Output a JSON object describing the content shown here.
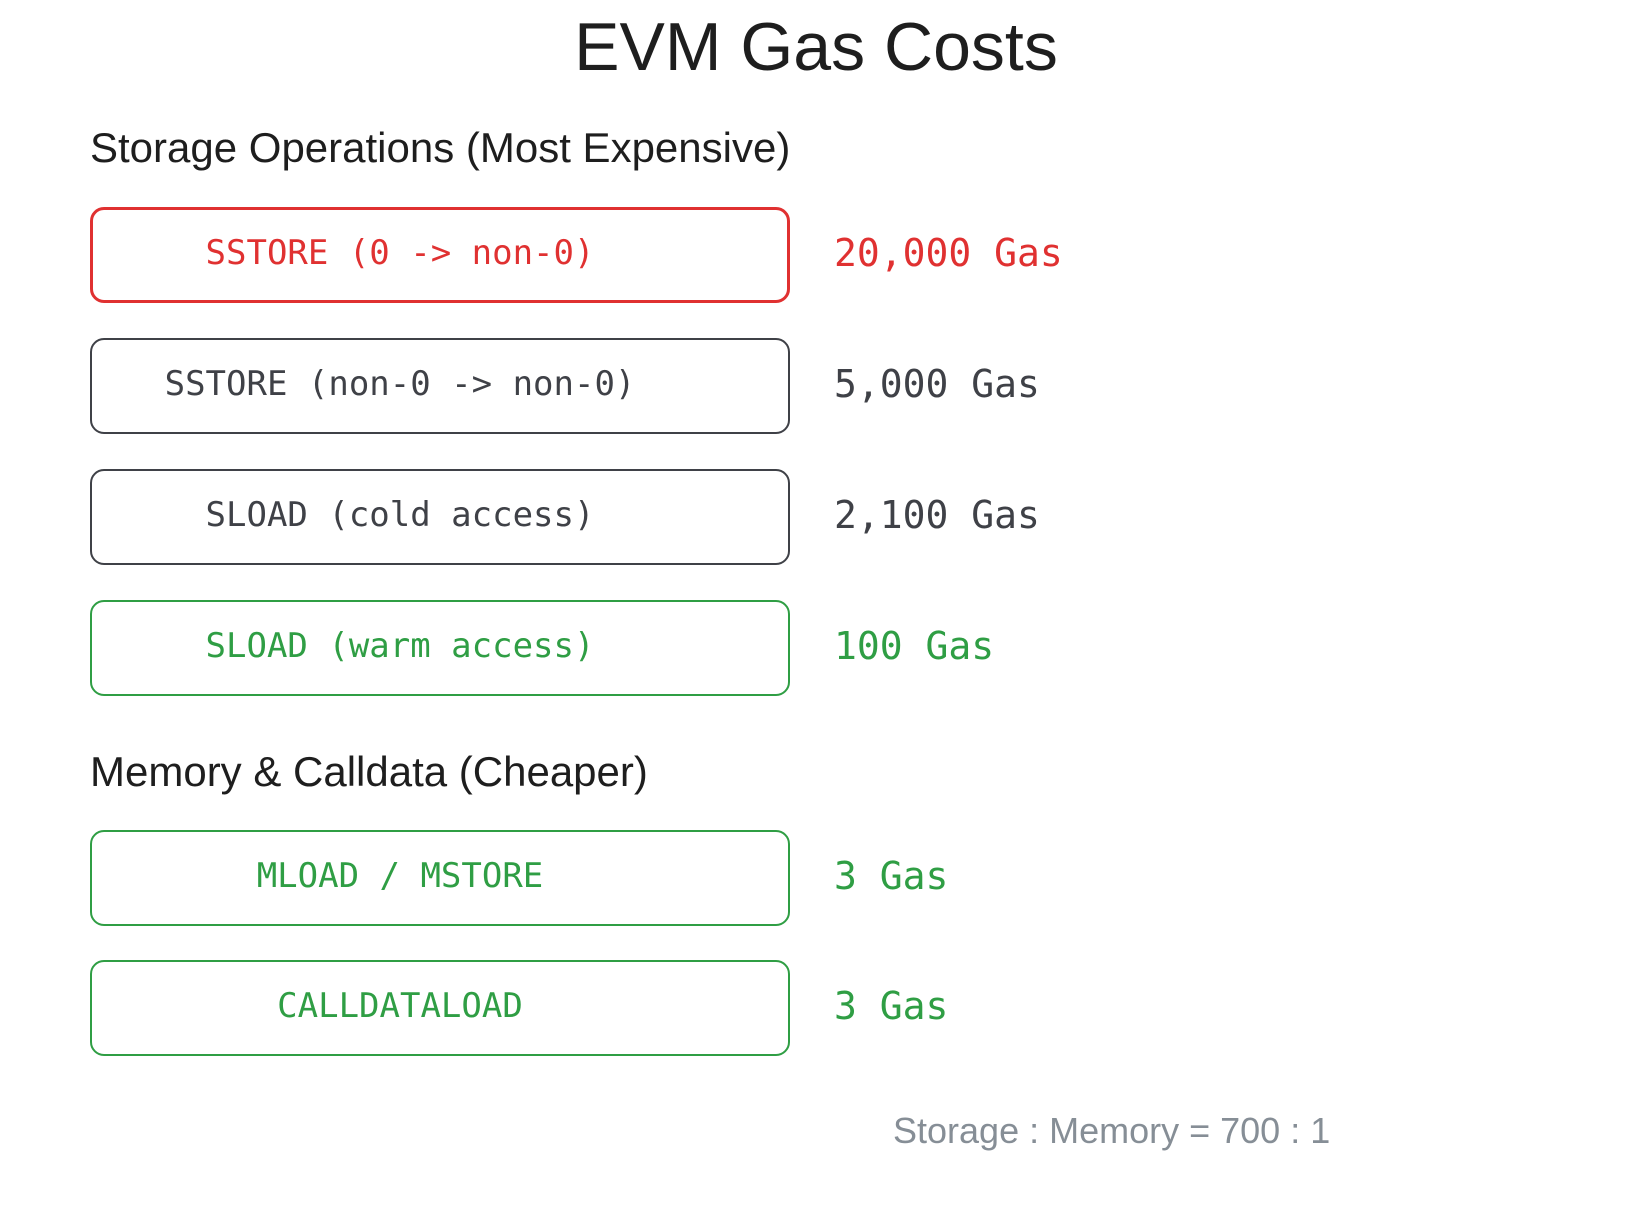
{
  "title": "EVM Gas Costs",
  "sections": [
    {
      "heading": "Storage Operations (Most Expensive)",
      "items": [
        {
          "label": "SSTORE (0 -> non-0)",
          "cost": "20,000 Gas",
          "color": "#e03131"
        },
        {
          "label": "SSTORE (non-0 -> non-0)",
          "cost": "5,000 Gas",
          "color": "#3f4147"
        },
        {
          "label": "SLOAD (cold access)",
          "cost": "2,100 Gas",
          "color": "#3f4147"
        },
        {
          "label": "SLOAD (warm access)",
          "cost": "100 Gas",
          "color": "#2f9e44"
        }
      ]
    },
    {
      "heading": "Memory & Calldata (Cheaper)",
      "items": [
        {
          "label": "MLOAD / MSTORE",
          "cost": "3 Gas",
          "color": "#2f9e44"
        },
        {
          "label": "CALLDATALOAD",
          "cost": "3 Gas",
          "color": "#2f9e44"
        }
      ]
    }
  ],
  "footer": "Storage : Memory = 700 : 1"
}
